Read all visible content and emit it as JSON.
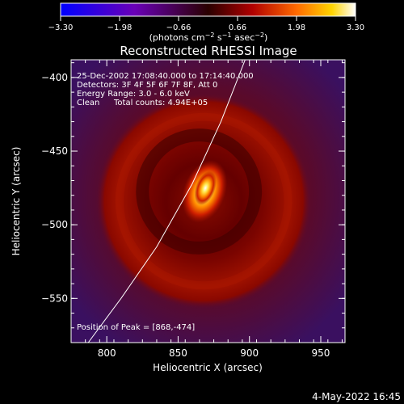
{
  "colorbar": {
    "ticks": [
      "−3.30",
      "−1.98",
      "−0.66",
      "0.66",
      "1.98",
      "3.30"
    ],
    "units_prefix": "(photons cm",
    "units_exp1": "−2",
    "units_mid1": " s",
    "units_exp2": "−1",
    "units_mid2": " asec",
    "units_exp3": "−2",
    "units_suffix": ")",
    "range": [
      -3.3,
      3.3
    ]
  },
  "chart_data": {
    "type": "heatmap",
    "title": "Reconstructed RHESSI Image",
    "xlabel": "Heliocentric X (arcsec)",
    "ylabel": "Heliocentric Y (arcsec)",
    "xlim": [
      775,
      967
    ],
    "ylim": [
      -580,
      -388
    ],
    "x_ticks": [
      800,
      850,
      900,
      950
    ],
    "y_ticks": [
      -400,
      -450,
      -500,
      -550
    ],
    "x_tick_labels": [
      "800",
      "850",
      "900",
      "950"
    ],
    "y_tick_labels": [
      "−400",
      "−450",
      "−500",
      "−550"
    ],
    "peak": [
      868,
      -474
    ],
    "ring_center": [
      868,
      -484
    ],
    "ring_radius": 72,
    "limb_curve": {
      "x": [
        787,
        810,
        835,
        860,
        880,
        897
      ],
      "y": [
        -580,
        -550,
        -515,
        -472,
        -430,
        -388
      ]
    }
  },
  "annotations": {
    "time_range": "25-Dec-2002 17:08:40.000 to 17:14:40.000",
    "detectors": "Detectors: 3F 4F 5F 6F 7F 8F, Att 0",
    "energy": "Energy Range: 3.0 - 6.0 keV",
    "clean": "Clean",
    "total_counts": "Total counts: 4.94E+05",
    "peak_position": "Position of Peak = [868,-474]"
  },
  "footer_date": "4-May-2022 16:45"
}
